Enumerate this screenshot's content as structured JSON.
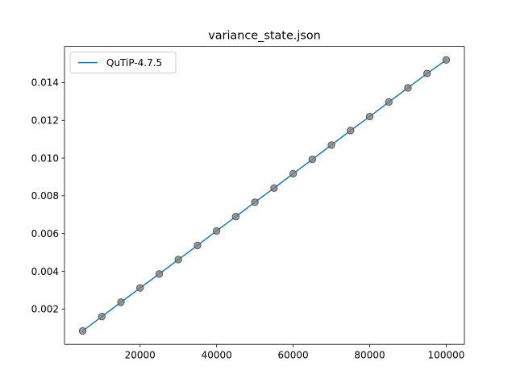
{
  "chart_data": {
    "type": "line",
    "title": "variance_state.json",
    "xlabel": "",
    "ylabel": "",
    "xlim": [
      250,
      104750
    ],
    "ylim": [
      0.000125,
      0.015915
    ],
    "xticks": [
      20000,
      40000,
      60000,
      80000,
      100000
    ],
    "yticks": [
      0.002,
      0.004,
      0.006,
      0.008,
      0.01,
      0.012,
      0.014
    ],
    "xtick_labels": [
      "20000",
      "40000",
      "60000",
      "80000",
      "100000"
    ],
    "ytick_labels": [
      "0.002",
      "0.004",
      "0.006",
      "0.008",
      "0.010",
      "0.012",
      "0.014"
    ],
    "grid": false,
    "legend_position": "upper-left",
    "x": [
      5000,
      10000,
      15000,
      20000,
      25000,
      30000,
      35000,
      40000,
      45000,
      50000,
      55000,
      60000,
      65000,
      70000,
      75000,
      80000,
      85000,
      90000,
      95000,
      100000
    ],
    "series": [
      {
        "name": "QuTiP-4.7.5",
        "kind": "line",
        "color": "#1f77b4",
        "values": [
          0.00084,
          0.0016,
          0.00236,
          0.00312,
          0.00386,
          0.00462,
          0.00537,
          0.00614,
          0.0069,
          0.00766,
          0.00841,
          0.00917,
          0.00993,
          0.01069,
          0.01146,
          0.0122,
          0.01297,
          0.01372,
          0.01448,
          0.0152
        ]
      },
      {
        "kind": "scatter",
        "color": "#808080",
        "values": [
          0.00084,
          0.0016,
          0.00236,
          0.00312,
          0.00386,
          0.00462,
          0.00537,
          0.00614,
          0.0069,
          0.00766,
          0.00841,
          0.00917,
          0.00993,
          0.01069,
          0.01146,
          0.0122,
          0.01297,
          0.01372,
          0.01448,
          0.0152
        ]
      }
    ]
  }
}
